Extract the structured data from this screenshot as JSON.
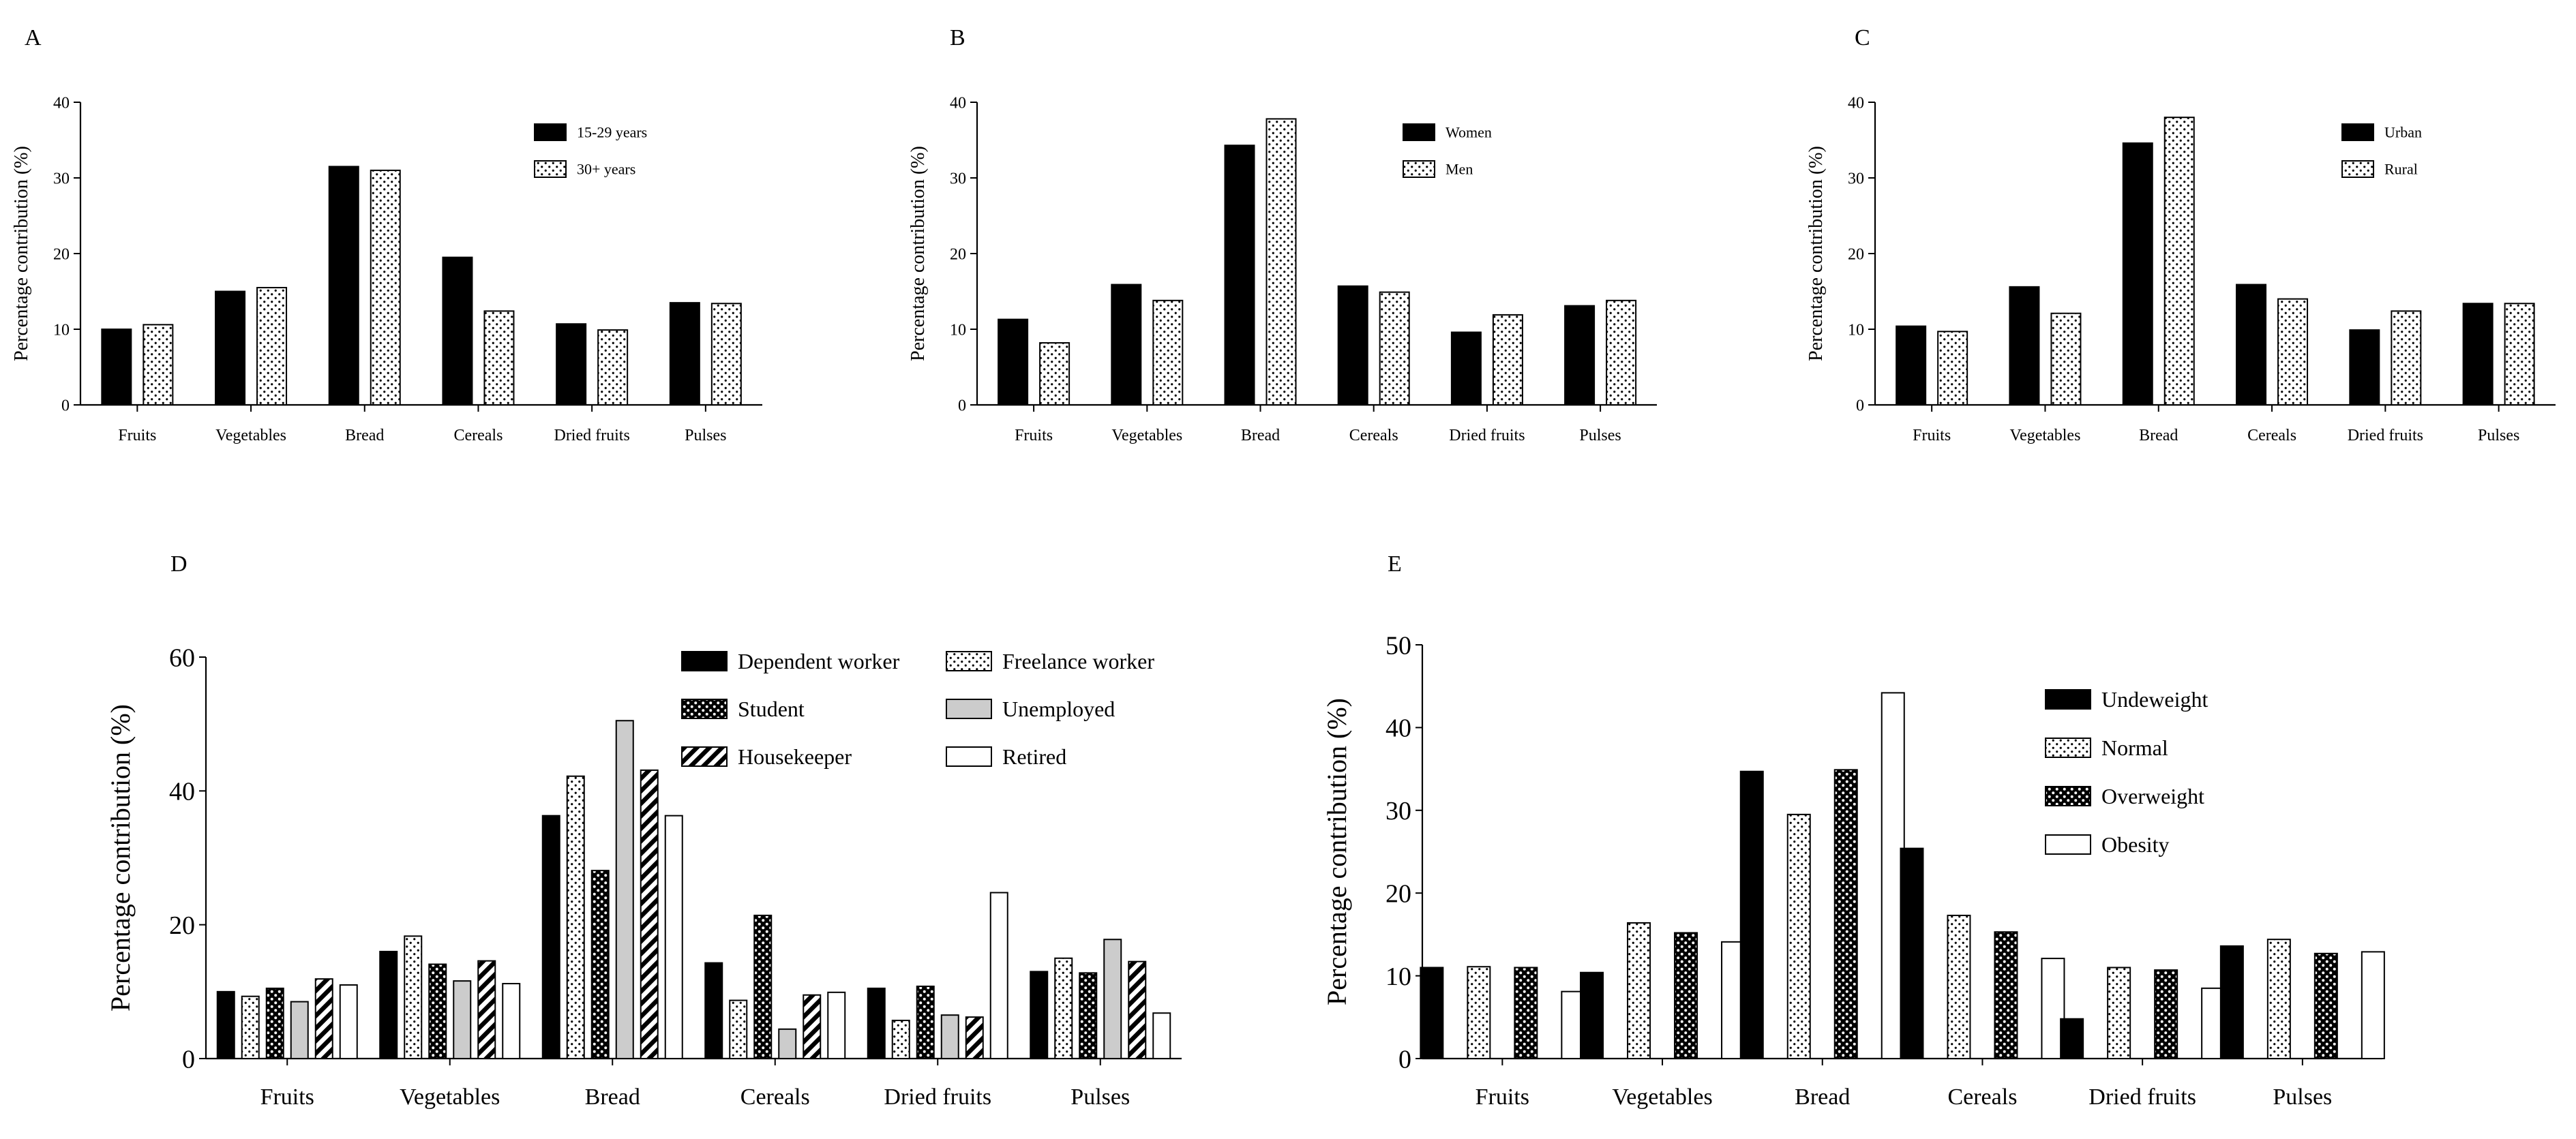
{
  "chart_data": [
    {
      "panel": "A",
      "type": "bar",
      "categories": [
        "Fruits",
        "Vegetables",
        "Bread",
        "Cereals",
        "Dried fruits",
        "Pulses"
      ],
      "ylabel": "Percentage contribution (%)",
      "ylim": [
        0,
        40
      ],
      "yticks": [
        0,
        10,
        20,
        30,
        40
      ],
      "legend": "top-right",
      "series": [
        {
          "name": "15-29 years",
          "pattern": "solid",
          "values": [
            10.0,
            15.0,
            31.5,
            19.5,
            10.7,
            13.5
          ]
        },
        {
          "name": "30+ years",
          "pattern": "dots",
          "values": [
            10.6,
            15.5,
            31.0,
            12.4,
            9.9,
            13.4
          ]
        }
      ]
    },
    {
      "panel": "B",
      "type": "bar",
      "categories": [
        "Fruits",
        "Vegetables",
        "Bread",
        "Cereals",
        "Dried fruits",
        "Pulses"
      ],
      "ylabel": "Percentage contribution (%)",
      "ylim": [
        0,
        40
      ],
      "yticks": [
        0,
        10,
        20,
        30,
        40
      ],
      "legend": "top-right",
      "series": [
        {
          "name": "Women",
          "pattern": "solid",
          "values": [
            11.3,
            15.9,
            34.3,
            15.7,
            9.6,
            13.1
          ]
        },
        {
          "name": "Men",
          "pattern": "dots",
          "values": [
            8.2,
            13.8,
            37.8,
            14.9,
            11.9,
            13.8
          ]
        }
      ]
    },
    {
      "panel": "C",
      "type": "bar",
      "categories": [
        "Fruits",
        "Vegetables",
        "Bread",
        "Cereals",
        "Dried fruits",
        "Pulses"
      ],
      "ylabel": "Percentage contribution (%)",
      "ylim": [
        0,
        40
      ],
      "yticks": [
        0,
        10,
        20,
        30,
        40
      ],
      "legend": "top-right",
      "series": [
        {
          "name": "Urban",
          "pattern": "solid",
          "values": [
            10.4,
            15.6,
            34.6,
            15.9,
            9.9,
            13.4
          ]
        },
        {
          "name": "Rural",
          "pattern": "dots",
          "values": [
            9.7,
            12.1,
            38.0,
            14.0,
            12.4,
            13.4
          ]
        }
      ]
    },
    {
      "panel": "D",
      "type": "bar",
      "categories": [
        "Fruits",
        "Vegetables",
        "Bread",
        "Cereals",
        "Dried fruits",
        "Pulses"
      ],
      "ylabel": "Percentage contribution (%)",
      "ylim": [
        0,
        60
      ],
      "yticks": [
        0,
        20,
        40,
        60
      ],
      "legend": "top-right",
      "series": [
        {
          "name": "Dependent worker",
          "pattern": "solid",
          "values": [
            10.0,
            16.0,
            36.3,
            14.3,
            10.5,
            13.0
          ]
        },
        {
          "name": "Freelance worker",
          "pattern": "dots",
          "values": [
            9.3,
            18.3,
            42.2,
            8.7,
            5.7,
            15.0
          ]
        },
        {
          "name": "Student",
          "pattern": "darkdots",
          "values": [
            10.5,
            14.1,
            28.1,
            21.4,
            10.8,
            12.8
          ]
        },
        {
          "name": "Unemployed",
          "pattern": "gray",
          "values": [
            8.5,
            11.6,
            50.5,
            4.4,
            6.5,
            17.8
          ]
        },
        {
          "name": "Housekeeper",
          "pattern": "stripes",
          "values": [
            11.9,
            14.6,
            43.1,
            9.5,
            6.2,
            14.5
          ]
        },
        {
          "name": "Retired",
          "pattern": "white",
          "values": [
            11.0,
            11.2,
            36.3,
            9.9,
            24.8,
            6.8
          ]
        }
      ],
      "legend_order": [
        "Dependent worker",
        "Freelance worker",
        "Student",
        "Unemployed",
        "Housekeeper",
        "Retired"
      ]
    },
    {
      "panel": "E",
      "type": "bar",
      "categories": [
        "Fruits",
        "Vegetables",
        "Bread",
        "Cereals",
        "Dried fruits",
        "Pulses"
      ],
      "ylabel": "Percentage contribution (%)",
      "ylim": [
        0,
        50
      ],
      "yticks": [
        0,
        10,
        20,
        30,
        40,
        50
      ],
      "legend": "top-right",
      "series": [
        {
          "name": "Undeweight",
          "pattern": "solid",
          "values": [
            11.0,
            10.4,
            34.7,
            25.4,
            4.8,
            13.6
          ]
        },
        {
          "name": "Normal",
          "pattern": "dots",
          "values": [
            11.1,
            16.4,
            29.5,
            17.3,
            11.0,
            14.4
          ]
        },
        {
          "name": "Overweight",
          "pattern": "darkdots",
          "values": [
            11.0,
            15.2,
            34.9,
            15.3,
            10.7,
            12.7
          ]
        },
        {
          "name": "Obesity",
          "pattern": "white",
          "values": [
            8.1,
            14.1,
            44.2,
            12.1,
            8.5,
            12.9
          ]
        }
      ]
    }
  ]
}
